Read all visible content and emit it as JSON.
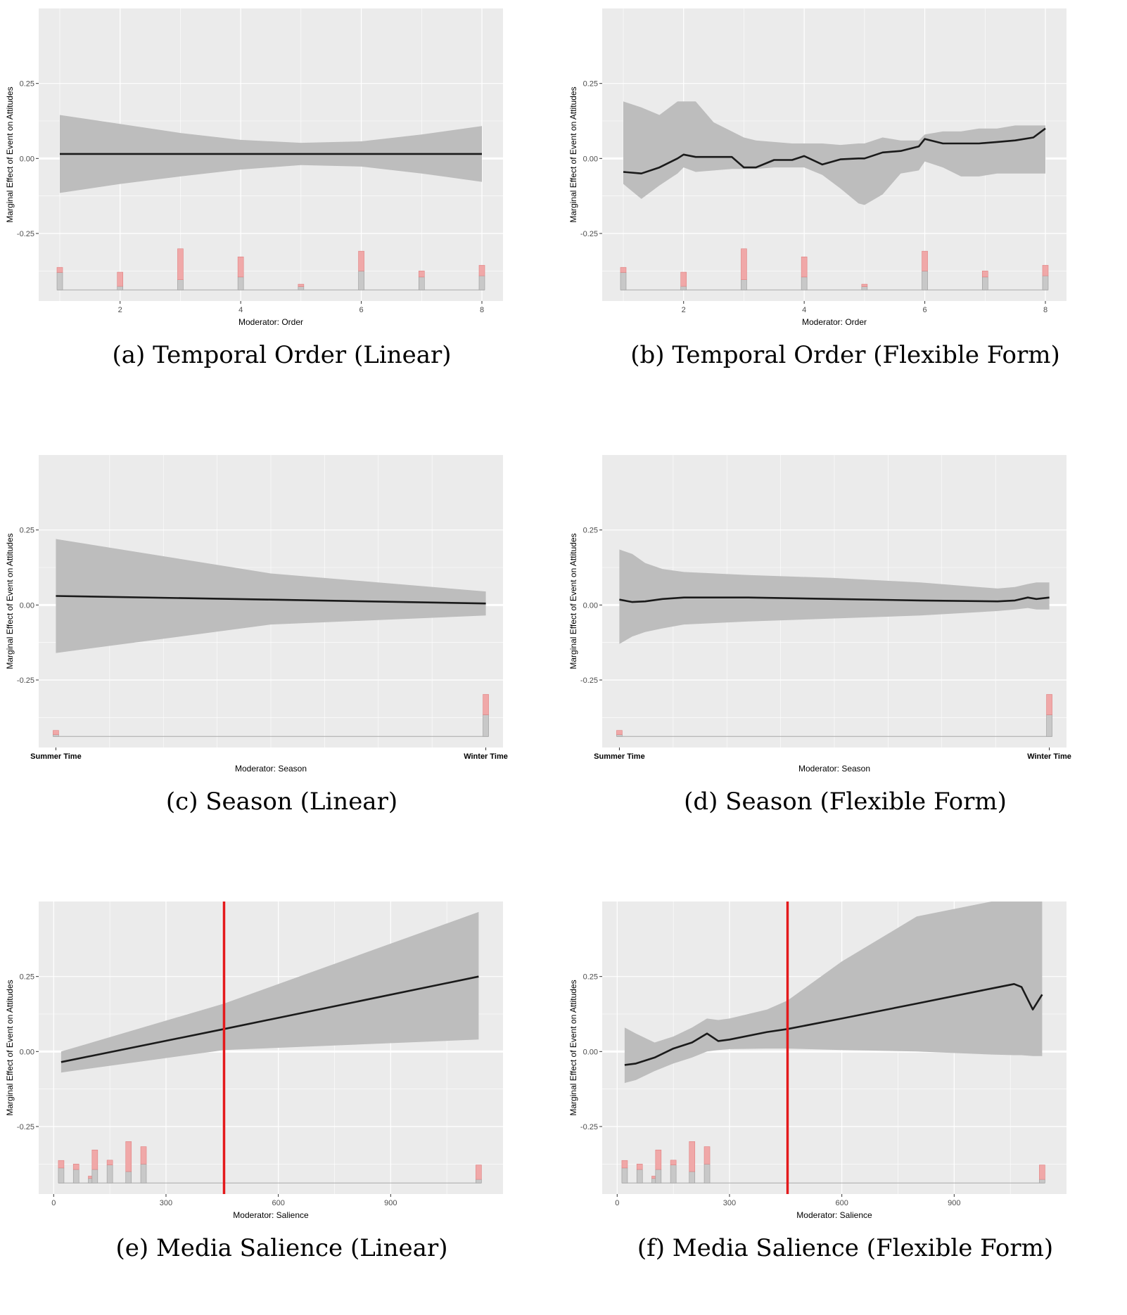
{
  "chart_data": [
    {
      "type": "line",
      "caption": "(a) Temporal Order (Linear)",
      "xlabel": "Moderator: Order",
      "ylabel": "Marginal Effect of Event on Attitudes",
      "xaxis": "numeric",
      "xlim": [
        0.65,
        8.35
      ],
      "ylim": [
        -0.475,
        0.5
      ],
      "xticks": [
        2,
        4,
        6,
        8
      ],
      "xticklabels": [
        "2",
        "4",
        "6",
        "8"
      ],
      "yticks": [
        0.25,
        0.0,
        -0.25
      ],
      "yticklabels": [
        "0.25",
        "0.00",
        "-0.25"
      ],
      "series": [
        {
          "x": [
            1,
            2,
            3,
            4,
            5,
            6,
            7,
            8
          ],
          "y": [
            0.015,
            0.015,
            0.015,
            0.015,
            0.015,
            0.015,
            0.015,
            0.015
          ],
          "lower": [
            -0.115,
            -0.085,
            -0.06,
            -0.037,
            -0.022,
            -0.027,
            -0.05,
            -0.078
          ],
          "upper": [
            0.145,
            0.115,
            0.085,
            0.062,
            0.052,
            0.057,
            0.08,
            0.108
          ]
        }
      ],
      "histogram": {
        "x": [
          1,
          2,
          3,
          4,
          5,
          6,
          7,
          8
        ],
        "gray": [
          0.058,
          0.012,
          0.034,
          0.043,
          0.011,
          0.063,
          0.043,
          0.047
        ],
        "red": [
          0.017,
          0.047,
          0.103,
          0.067,
          0.008,
          0.066,
          0.02,
          0.035
        ]
      },
      "vline": null
    },
    {
      "type": "line",
      "caption": "(b) Temporal Order (Flexible Form)",
      "xlabel": "Moderator: Order",
      "ylabel": "Marginal Effect of Event on Attitudes",
      "xaxis": "numeric",
      "xlim": [
        0.65,
        8.35
      ],
      "ylim": [
        -0.475,
        0.5
      ],
      "xticks": [
        2,
        4,
        6,
        8
      ],
      "xticklabels": [
        "2",
        "4",
        "6",
        "8"
      ],
      "yticks": [
        0.25,
        0.0,
        -0.25
      ],
      "yticklabels": [
        "0.25",
        "0.00",
        "-0.25"
      ],
      "series": [
        {
          "x": [
            1,
            1.3,
            1.6,
            1.9,
            2.0,
            2.2,
            2.5,
            2.8,
            3.0,
            3.2,
            3.5,
            3.8,
            4.0,
            4.3,
            4.6,
            4.9,
            5.0,
            5.3,
            5.6,
            5.9,
            6.0,
            6.3,
            6.6,
            6.9,
            7.2,
            7.5,
            7.8,
            8.0
          ],
          "y": [
            -0.045,
            -0.05,
            -0.03,
            0.0,
            0.013,
            0.005,
            0.005,
            0.005,
            -0.03,
            -0.03,
            -0.005,
            -0.005,
            0.008,
            -0.02,
            -0.003,
            0.0,
            0.0,
            0.02,
            0.025,
            0.04,
            0.065,
            0.05,
            0.05,
            0.05,
            0.055,
            0.06,
            0.07,
            0.1
          ],
          "lower": [
            -0.085,
            -0.135,
            -0.09,
            -0.05,
            -0.03,
            -0.045,
            -0.04,
            -0.035,
            -0.035,
            -0.035,
            -0.03,
            -0.03,
            -0.03,
            -0.055,
            -0.1,
            -0.15,
            -0.155,
            -0.12,
            -0.05,
            -0.04,
            -0.01,
            -0.03,
            -0.06,
            -0.06,
            -0.05,
            -0.05,
            -0.05,
            -0.05
          ],
          "upper": [
            0.19,
            0.17,
            0.145,
            0.19,
            0.19,
            0.19,
            0.12,
            0.09,
            0.07,
            0.06,
            0.055,
            0.05,
            0.05,
            0.05,
            0.045,
            0.05,
            0.05,
            0.07,
            0.06,
            0.06,
            0.08,
            0.09,
            0.09,
            0.1,
            0.1,
            0.11,
            0.11,
            0.11
          ]
        }
      ],
      "histogram": {
        "x": [
          1,
          2,
          3,
          4,
          5,
          6,
          7,
          8
        ],
        "gray": [
          0.058,
          0.012,
          0.034,
          0.043,
          0.011,
          0.063,
          0.043,
          0.047
        ],
        "red": [
          0.017,
          0.047,
          0.103,
          0.067,
          0.008,
          0.066,
          0.02,
          0.035
        ]
      },
      "vline": null
    },
    {
      "type": "line",
      "caption": "(c) Season (Linear)",
      "xlabel": "Moderator: Season",
      "ylabel": "Marginal Effect of Event on Attitudes",
      "xaxis": "categorical",
      "xlim": [
        -0.04,
        1.04
      ],
      "ylim": [
        -0.475,
        0.5
      ],
      "xticks": [
        0,
        1
      ],
      "xticklabels": [
        "Summer Time",
        "Winter Time"
      ],
      "yticks": [
        0.25,
        0.0,
        -0.25
      ],
      "yticklabels": [
        "0.25",
        "0.00",
        "-0.25"
      ],
      "series": [
        {
          "x": [
            0,
            0.5,
            1
          ],
          "y": [
            0.03,
            0.018,
            0.005
          ],
          "lower": [
            -0.16,
            -0.065,
            -0.035
          ],
          "upper": [
            0.22,
            0.105,
            0.045
          ]
        }
      ],
      "histogram": {
        "x": [
          0,
          1
        ],
        "gray": [
          0.006,
          0.072
        ],
        "red": [
          0.014,
          0.068
        ]
      },
      "vline": null
    },
    {
      "type": "line",
      "caption": "(d) Season (Flexible Form)",
      "xlabel": "Moderator: Season",
      "ylabel": "Marginal Effect of Event on Attitudes",
      "xaxis": "categorical",
      "xlim": [
        -0.04,
        1.04
      ],
      "ylim": [
        -0.475,
        0.5
      ],
      "xticks": [
        0,
        1
      ],
      "xticklabels": [
        "Summer Time",
        "Winter Time"
      ],
      "yticks": [
        0.25,
        0.0,
        -0.25
      ],
      "yticklabels": [
        "0.25",
        "0.00",
        "-0.25"
      ],
      "series": [
        {
          "x": [
            0,
            0.03,
            0.06,
            0.1,
            0.15,
            0.3,
            0.5,
            0.7,
            0.88,
            0.92,
            0.95,
            0.97,
            1.0
          ],
          "y": [
            0.018,
            0.01,
            0.012,
            0.02,
            0.025,
            0.025,
            0.02,
            0.015,
            0.012,
            0.015,
            0.025,
            0.02,
            0.025
          ],
          "lower": [
            -0.13,
            -0.105,
            -0.09,
            -0.078,
            -0.065,
            -0.055,
            -0.045,
            -0.035,
            -0.02,
            -0.015,
            -0.01,
            -0.015,
            -0.015
          ],
          "upper": [
            0.185,
            0.17,
            0.14,
            0.12,
            0.11,
            0.1,
            0.09,
            0.075,
            0.055,
            0.06,
            0.07,
            0.075,
            0.075
          ]
        }
      ],
      "histogram": {
        "x": [
          0,
          1
        ],
        "gray": [
          0.006,
          0.072
        ],
        "red": [
          0.014,
          0.068
        ]
      },
      "vline": null
    },
    {
      "type": "line",
      "caption": "(e) Media Salience (Linear)",
      "xlabel": "Moderator: Salience",
      "ylabel": "Marginal Effect of Event on Attitudes",
      "xaxis": "numeric",
      "xlim": [
        -40,
        1200
      ],
      "ylim": [
        -0.475,
        0.5
      ],
      "xticks": [
        0,
        300,
        600,
        900
      ],
      "xticklabels": [
        "0",
        "300",
        "600",
        "900"
      ],
      "yticks": [
        0.25,
        0.0,
        -0.25
      ],
      "yticklabels": [
        "0.25",
        "0.00",
        "-0.25"
      ],
      "series": [
        {
          "x": [
            20,
            455,
            1135
          ],
          "y": [
            -0.035,
            0.075,
            0.25
          ],
          "lower": [
            -0.07,
            0.005,
            0.04
          ],
          "upper": [
            0.0,
            0.16,
            0.465
          ]
        }
      ],
      "histogram": {
        "x": [
          20,
          60,
          100,
          110,
          150,
          200,
          240,
          1135
        ],
        "gray": [
          0.05,
          0.045,
          0.015,
          0.045,
          0.06,
          0.038,
          0.063,
          0.012
        ],
        "red": [
          0.025,
          0.018,
          0.008,
          0.065,
          0.016,
          0.1,
          0.058,
          0.048
        ]
      },
      "vline": 455
    },
    {
      "type": "line",
      "caption": "(f) Media Salience (Flexible Form)",
      "xlabel": "Moderator: Salience",
      "ylabel": "Marginal Effect of Event on Attitudes",
      "xaxis": "numeric",
      "xlim": [
        -40,
        1200
      ],
      "ylim": [
        -0.475,
        0.5
      ],
      "xticks": [
        0,
        300,
        600,
        900
      ],
      "xticklabels": [
        "0",
        "300",
        "600",
        "900"
      ],
      "yticks": [
        0.25,
        0.0,
        -0.25
      ],
      "yticklabels": [
        "0.25",
        "0.00",
        "-0.25"
      ],
      "series": [
        {
          "x": [
            20,
            50,
            100,
            150,
            200,
            240,
            270,
            300,
            400,
            455,
            600,
            800,
            1000,
            1060,
            1080,
            1110,
            1135
          ],
          "y": [
            -0.045,
            -0.04,
            -0.02,
            0.01,
            0.03,
            0.06,
            0.035,
            0.04,
            0.065,
            0.075,
            0.11,
            0.16,
            0.21,
            0.225,
            0.215,
            0.14,
            0.19
          ],
          "lower": [
            -0.105,
            -0.095,
            -0.065,
            -0.04,
            -0.02,
            -0.0,
            0.005,
            0.008,
            0.01,
            0.01,
            0.005,
            0.0,
            -0.01,
            -0.012,
            -0.012,
            -0.015,
            -0.015
          ],
          "upper": [
            0.08,
            0.06,
            0.03,
            0.05,
            0.08,
            0.11,
            0.105,
            0.11,
            0.14,
            0.17,
            0.3,
            0.45,
            0.5,
            0.5,
            0.5,
            0.5,
            0.5
          ]
        }
      ],
      "histogram": {
        "x": [
          20,
          60,
          100,
          110,
          150,
          200,
          240,
          1135
        ],
        "gray": [
          0.05,
          0.045,
          0.015,
          0.045,
          0.06,
          0.038,
          0.063,
          0.012
        ],
        "red": [
          0.025,
          0.018,
          0.008,
          0.065,
          0.016,
          0.1,
          0.058,
          0.048
        ]
      },
      "vline": 455
    }
  ],
  "colors": {
    "panel_bg": "#ebebeb",
    "grid": "#ffffff",
    "ribbon": "#bdbdbd",
    "line": "#1a1a1a",
    "hist_gray": "#c8c8c8",
    "hist_red": "#f0a8a8",
    "vline": "#e41a1c"
  }
}
